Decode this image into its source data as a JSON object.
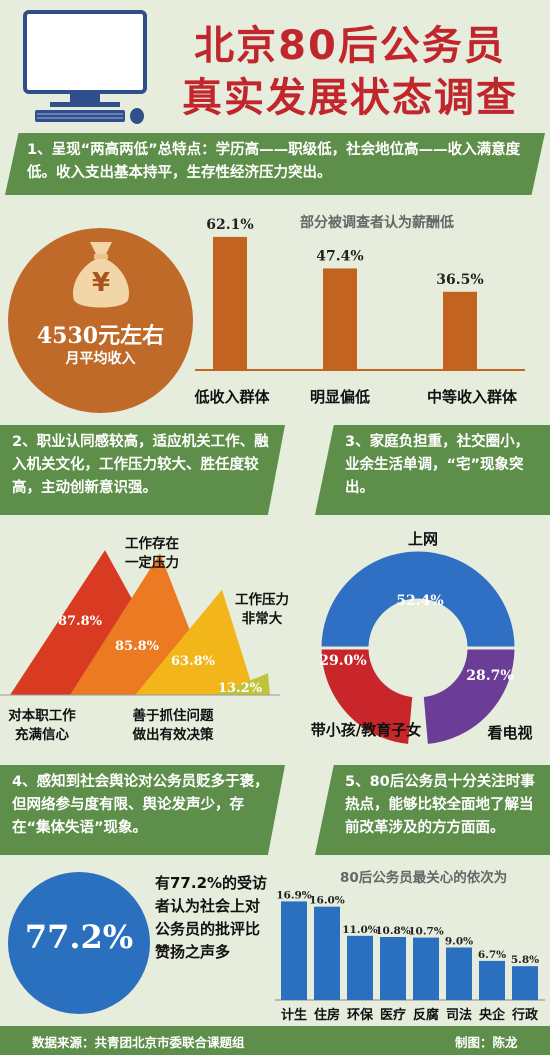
{
  "header": {
    "title_line1": "北京80后公务员",
    "title_line2": "真实发展状态调查"
  },
  "section1": {
    "text": "1、呈现“两高两低”总特点：学历高——职级低，社会地位高——收入满意度低。收入支出基本持平，生存性经济压力突出。",
    "circle_amount": "4530元左右",
    "circle_caption": "月平均收入",
    "currency_symbol": "¥"
  },
  "section2": {
    "text": "2、职业认同感较高，适应机关工作、融入机关文化，工作压力较大、胜任度较高，主动创新意识强。"
  },
  "section3": {
    "text": "3、家庭负担重，社交圈小，业余生活单调，“宅”现象突出。"
  },
  "section4": {
    "text": "4、感知到社会舆论对公务员贬多于褒，但网络参与度有限、舆论发声少，存在“集体失语”现象。",
    "big_percent": "77.2%",
    "description": "有77.2%的受访者认为社会上对公务员的批评比赞扬之声多"
  },
  "section5": {
    "text": "5、80后公务员十分关注时事热点，能够比较全面地了解当前改革涉及的方方面面。"
  },
  "footer": {
    "source": "数据来源：共青团北京市委联合课题组",
    "credit": "制图：陈龙"
  },
  "colors": {
    "title": "#c0262c",
    "banner": "#5e8f4a",
    "income_bar": "#c2641f",
    "circle": "#bf6a28",
    "blue_bar": "#2b6fbf",
    "donut_blue": "#2f6fc4",
    "donut_red": "#c8262a",
    "donut_purple": "#6b3d96"
  },
  "chart_data": [
    {
      "type": "bar",
      "title": "部分被调查者认为薪酬低",
      "categories": [
        "低收入群体",
        "明显偏低",
        "中等收入群体"
      ],
      "values": [
        62.1,
        47.4,
        36.5
      ],
      "value_labels": [
        "62.1%",
        "47.4%",
        "36.5%"
      ],
      "ylim": [
        0,
        70
      ]
    },
    {
      "type": "area",
      "title": "",
      "categories": [
        "对本职工作充满信心",
        "善于抓住问题做出有效决策",
        "工作存在一定压力",
        "工作压力非常大"
      ],
      "values": [
        87.8,
        85.8,
        63.8,
        13.2
      ],
      "value_labels": [
        "87.8%",
        "85.8%",
        "63.8%",
        "13.2%"
      ],
      "ylim": [
        0,
        100
      ]
    },
    {
      "type": "pie",
      "title": "",
      "categories": [
        "上网",
        "看电视",
        "带小孩/教育子女"
      ],
      "values": [
        52.4,
        28.7,
        29.0
      ],
      "value_labels": [
        "52.4%",
        "28.7%",
        "29.0%"
      ]
    },
    {
      "type": "bar",
      "title": "80后公务员最关心的依次为",
      "categories": [
        "计生",
        "住房",
        "环保",
        "医疗",
        "反腐",
        "司法",
        "央企",
        "行政"
      ],
      "values": [
        16.9,
        16.0,
        11.0,
        10.8,
        10.7,
        9.0,
        6.7,
        5.8
      ],
      "value_labels": [
        "16.9%",
        "16.0%",
        "11.0%",
        "10.8%",
        "10.7%",
        "9.0%",
        "6.7%",
        "5.8%"
      ],
      "ylim": [
        0,
        18
      ]
    }
  ]
}
